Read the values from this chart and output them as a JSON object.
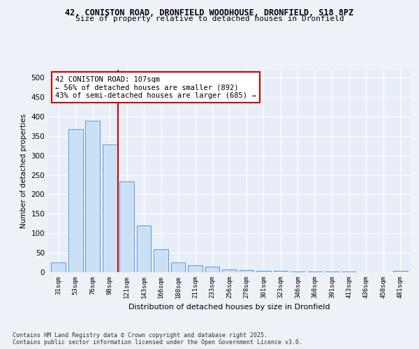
{
  "title_line1": "42, CONISTON ROAD, DRONFIELD WOODHOUSE, DRONFIELD, S18 8PZ",
  "title_line2": "Size of property relative to detached houses in Dronfield",
  "xlabel": "Distribution of detached houses by size in Dronfield",
  "ylabel": "Number of detached properties",
  "categories": [
    "31sqm",
    "53sqm",
    "76sqm",
    "98sqm",
    "121sqm",
    "143sqm",
    "166sqm",
    "188sqm",
    "211sqm",
    "233sqm",
    "256sqm",
    "278sqm",
    "301sqm",
    "323sqm",
    "346sqm",
    "368sqm",
    "391sqm",
    "413sqm",
    "436sqm",
    "458sqm",
    "481sqm"
  ],
  "values": [
    25,
    368,
    390,
    328,
    233,
    120,
    60,
    25,
    18,
    15,
    7,
    6,
    4,
    3,
    2,
    2,
    1,
    1,
    0,
    0,
    3
  ],
  "bar_color": "#cce0f5",
  "bar_edge_color": "#5b9bd5",
  "vline_x_index": 3.5,
  "vline_color": "#cc0000",
  "annotation_text": "42 CONISTON ROAD: 107sqm\n← 56% of detached houses are smaller (892)\n43% of semi-detached houses are larger (685) →",
  "annotation_box_color": "#ffffff",
  "annotation_box_edge": "#cc0000",
  "ylim": [
    0,
    520
  ],
  "yticks": [
    0,
    50,
    100,
    150,
    200,
    250,
    300,
    350,
    400,
    450,
    500
  ],
  "footer_text": "Contains HM Land Registry data © Crown copyright and database right 2025.\nContains public sector information licensed under the Open Government Licence v3.0.",
  "bg_color": "#eef2f8",
  "plot_bg_color": "#e8eef8"
}
